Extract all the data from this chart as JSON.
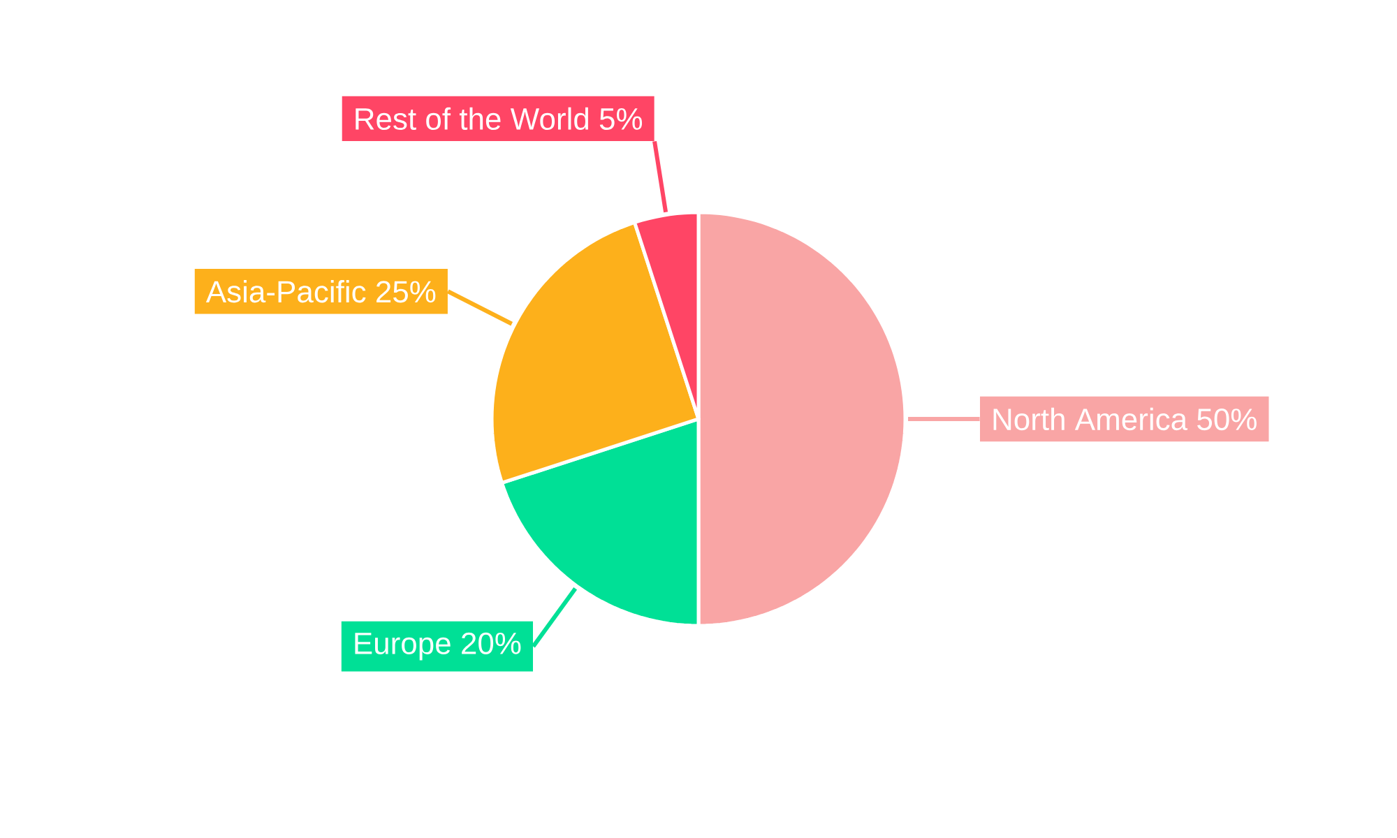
{
  "chart_data": {
    "type": "pie",
    "categories": [
      "North America",
      "Europe",
      "Asia-Pacific",
      "Rest of the World"
    ],
    "values": [
      50,
      20,
      25,
      5
    ],
    "colors": [
      "#f9a5a5",
      "#00e096",
      "#fdb01b",
      "#ff4565"
    ],
    "value_labels": [
      "50%",
      "20%",
      "25%",
      "5%"
    ]
  }
}
